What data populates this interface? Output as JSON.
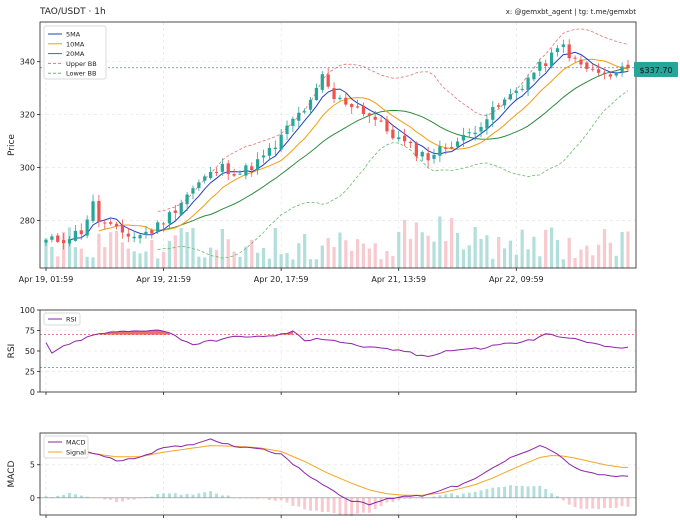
{
  "header": {
    "title": "TAO/USDT · 1h",
    "credit": "x: @gemxbt_agent | tg: t.me/gemxbt"
  },
  "price_badge": "$337.70",
  "colors": {
    "up": "#26a69a",
    "down": "#ef5350",
    "vol_up": "#b2dfdb",
    "vol_down": "#f8c9cf",
    "ma5": "#1f3fbf",
    "ma10": "#f39c12",
    "ma20": "#2e8b3e",
    "bb_upper": "#e57373",
    "bb_lower": "#66bb6a",
    "rsi": "#8e24aa",
    "macd": "#8e24aa",
    "signal": "#f5a623",
    "badge": "#26a69a"
  },
  "chart_data": [
    {
      "type": "candlestick",
      "ylabel": "Price",
      "ylim": [
        262,
        355
      ],
      "yticks": [
        280,
        300,
        320,
        340
      ],
      "xtick_labels": [
        "Apr 19, 01:59",
        "Apr 19, 21:59",
        "Apr 20, 17:59",
        "Apr 21, 13:59",
        "Apr 22, 09:59"
      ],
      "xtick_index": [
        0,
        20,
        40,
        60,
        80
      ],
      "legend": [
        "5MA",
        "10MA",
        "20MA",
        "Upper BB",
        "Lower BB"
      ],
      "legend_position": "top-left",
      "grid": true,
      "last_price": 337.7,
      "close_anchors": [
        [
          0,
          272
        ],
        [
          3,
          273
        ],
        [
          6,
          276
        ],
        [
          8,
          286
        ],
        [
          9,
          280
        ],
        [
          12,
          276
        ],
        [
          15,
          274
        ],
        [
          18,
          276
        ],
        [
          21,
          282
        ],
        [
          24,
          290
        ],
        [
          27,
          296
        ],
        [
          30,
          300
        ],
        [
          33,
          298
        ],
        [
          36,
          302
        ],
        [
          39,
          308
        ],
        [
          42,
          318
        ],
        [
          45,
          324
        ],
        [
          47,
          334
        ],
        [
          49,
          326
        ],
        [
          52,
          324
        ],
        [
          55,
          320
        ],
        [
          58,
          314
        ],
        [
          61,
          309
        ],
        [
          63,
          306
        ],
        [
          65,
          304
        ],
        [
          68,
          308
        ],
        [
          71,
          311
        ],
        [
          74,
          317
        ],
        [
          77,
          323
        ],
        [
          80,
          329
        ],
        [
          83,
          336
        ],
        [
          86,
          342
        ],
        [
          88,
          346
        ],
        [
          90,
          340
        ],
        [
          92,
          337
        ],
        [
          94,
          336
        ],
        [
          96,
          334
        ],
        [
          99,
          337.7
        ]
      ]
    },
    {
      "type": "line",
      "ylabel": "RSI",
      "ylim": [
        0,
        100
      ],
      "yticks": [
        0,
        25,
        50,
        75,
        100
      ],
      "levels": [
        70,
        30
      ],
      "legend": [
        "RSI"
      ],
      "anchors": [
        [
          0,
          60
        ],
        [
          1,
          48
        ],
        [
          3,
          55
        ],
        [
          6,
          64
        ],
        [
          9,
          71
        ],
        [
          12,
          73
        ],
        [
          15,
          74
        ],
        [
          18,
          76
        ],
        [
          20,
          75
        ],
        [
          22,
          68
        ],
        [
          25,
          58
        ],
        [
          28,
          62
        ],
        [
          31,
          66
        ],
        [
          34,
          68
        ],
        [
          37,
          67
        ],
        [
          40,
          70
        ],
        [
          42,
          74
        ],
        [
          44,
          62
        ],
        [
          46,
          66
        ],
        [
          49,
          63
        ],
        [
          52,
          58
        ],
        [
          55,
          54
        ],
        [
          58,
          52
        ],
        [
          61,
          50
        ],
        [
          63,
          45
        ],
        [
          65,
          44
        ],
        [
          68,
          50
        ],
        [
          71,
          52
        ],
        [
          74,
          53
        ],
        [
          77,
          58
        ],
        [
          80,
          60
        ],
        [
          83,
          64
        ],
        [
          85,
          70
        ],
        [
          88,
          68
        ],
        [
          91,
          62
        ],
        [
          94,
          58
        ],
        [
          97,
          53
        ],
        [
          99,
          55
        ]
      ]
    },
    {
      "type": "line",
      "ylabel": "MACD",
      "ylim": [
        -2.6,
        9.8
      ],
      "yticks": [
        0,
        5
      ],
      "legend": [
        "MACD",
        "Signal"
      ],
      "macd_anchors": [
        [
          0,
          7.5
        ],
        [
          4,
          7.8
        ],
        [
          8,
          6.8
        ],
        [
          12,
          5.6
        ],
        [
          16,
          6.2
        ],
        [
          20,
          7.5
        ],
        [
          24,
          7.9
        ],
        [
          28,
          8.9
        ],
        [
          32,
          7.8
        ],
        [
          36,
          7.6
        ],
        [
          40,
          6.5
        ],
        [
          44,
          3.8
        ],
        [
          48,
          1.5
        ],
        [
          52,
          -0.5
        ],
        [
          55,
          -1
        ],
        [
          58,
          -0.2
        ],
        [
          61,
          0.3
        ],
        [
          64,
          0.3
        ],
        [
          67,
          1.2
        ],
        [
          70,
          1.8
        ],
        [
          73,
          2.8
        ],
        [
          76,
          4.5
        ],
        [
          80,
          6.5
        ],
        [
          84,
          7.9
        ],
        [
          86,
          7.2
        ],
        [
          88,
          5.8
        ],
        [
          90,
          4.6
        ],
        [
          92,
          3.8
        ],
        [
          95,
          3.4
        ],
        [
          98,
          3.2
        ]
      ],
      "signal_anchors": [
        [
          0,
          7.4
        ],
        [
          4,
          7.2
        ],
        [
          8,
          6.7
        ],
        [
          12,
          6.2
        ],
        [
          16,
          6.2
        ],
        [
          20,
          6.9
        ],
        [
          24,
          7.4
        ],
        [
          28,
          7.9
        ],
        [
          32,
          7.8
        ],
        [
          36,
          7.6
        ],
        [
          40,
          7
        ],
        [
          44,
          5.5
        ],
        [
          48,
          3.7
        ],
        [
          52,
          2.2
        ],
        [
          55,
          1.2
        ],
        [
          58,
          0.6
        ],
        [
          61,
          0.4
        ],
        [
          64,
          0.4
        ],
        [
          67,
          0.7
        ],
        [
          70,
          1.3
        ],
        [
          73,
          2.0
        ],
        [
          76,
          3.0
        ],
        [
          80,
          4.6
        ],
        [
          84,
          6.1
        ],
        [
          86,
          6.4
        ],
        [
          88,
          6.3
        ],
        [
          90,
          6.0
        ],
        [
          92,
          5.6
        ],
        [
          95,
          5.0
        ],
        [
          98,
          4.6
        ]
      ]
    }
  ]
}
